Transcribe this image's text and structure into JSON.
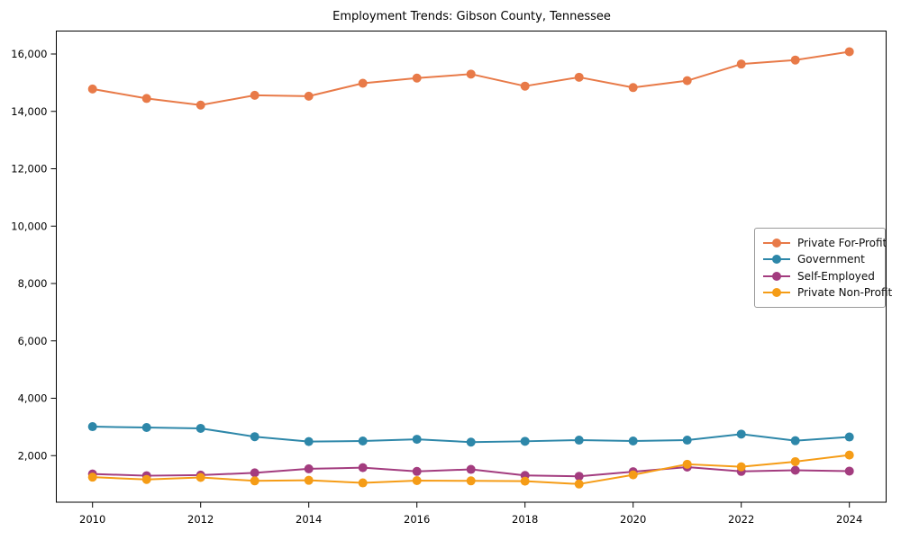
{
  "chart_data": {
    "type": "line",
    "title": "Employment Trends: Gibson County, Tennessee",
    "xlabel": "",
    "ylabel": "",
    "grid": false,
    "legend_position": "center right",
    "axis_color": "#000000",
    "background_color": "#ffffff",
    "xlim": [
      2009.3,
      2024.7
    ],
    "ylim": [
      380,
      16800
    ],
    "x": [
      2010,
      2011,
      2012,
      2013,
      2014,
      2015,
      2016,
      2017,
      2018,
      2019,
      2020,
      2021,
      2022,
      2023,
      2024
    ],
    "x_ticks": [
      2010,
      2012,
      2014,
      2016,
      2018,
      2020,
      2022,
      2024
    ],
    "x_tick_labels": [
      "2010",
      "2012",
      "2014",
      "2016",
      "2018",
      "2020",
      "2022",
      "2024"
    ],
    "y_ticks": [
      2000,
      4000,
      6000,
      8000,
      10000,
      12000,
      14000,
      16000
    ],
    "y_tick_labels": [
      "2,000",
      "4,000",
      "6,000",
      "8,000",
      "10,000",
      "12,000",
      "14,000",
      "16,000"
    ],
    "series": [
      {
        "name": "Private For-Profit",
        "color": "#e87a48",
        "marker": "circle",
        "values": [
          14780,
          14450,
          14220,
          14560,
          14530,
          14980,
          15160,
          15300,
          14880,
          15190,
          14830,
          15070,
          15650,
          15790,
          16080
        ]
      },
      {
        "name": "Government",
        "color": "#2d87a9",
        "marker": "circle",
        "values": [
          3010,
          2980,
          2950,
          2660,
          2490,
          2510,
          2570,
          2470,
          2500,
          2540,
          2510,
          2540,
          2750,
          2520,
          2650
        ]
      },
      {
        "name": "Self-Employed",
        "color": "#a33c7f",
        "marker": "circle",
        "values": [
          1360,
          1300,
          1320,
          1400,
          1540,
          1580,
          1450,
          1520,
          1310,
          1280,
          1440,
          1600,
          1450,
          1490,
          1460
        ]
      },
      {
        "name": "Private Non-Profit",
        "color": "#f59c16",
        "marker": "circle",
        "values": [
          1250,
          1170,
          1240,
          1120,
          1140,
          1050,
          1130,
          1120,
          1110,
          1010,
          1330,
          1700,
          1610,
          1790,
          2020
        ]
      }
    ]
  }
}
